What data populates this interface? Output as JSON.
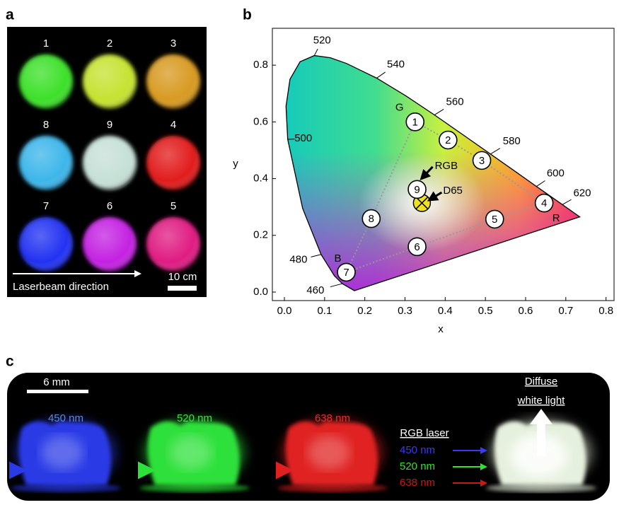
{
  "panel_a": {
    "label": "a",
    "arrow_label": "Laserbeam direction",
    "scale_label": "10 cm",
    "spheres": [
      {
        "number": "1",
        "color": "#3ce02c"
      },
      {
        "number": "2",
        "color": "#c6e232"
      },
      {
        "number": "3",
        "color": "#d89a22"
      },
      {
        "number": "8",
        "color": "#3cb6ea"
      },
      {
        "number": "9",
        "color": "#c6e0d6"
      },
      {
        "number": "4",
        "color": "#e21a1a"
      },
      {
        "number": "7",
        "color": "#2232f2"
      },
      {
        "number": "6",
        "color": "#c424e2"
      },
      {
        "number": "5",
        "color": "#e01c82"
      }
    ]
  },
  "chart_data": {
    "type": "chromaticity",
    "panel_label": "b",
    "xlabel": "x",
    "ylabel": "y",
    "xlim": [
      -0.03,
      0.82
    ],
    "ylim": [
      -0.03,
      0.93
    ],
    "xticks": [
      {
        "value": 0,
        "label": "0.0"
      },
      0.1,
      0.2,
      0.3,
      0.4,
      0.5,
      0.6,
      0.7,
      0.8
    ],
    "yticks": [
      {
        "value": 0,
        "label": "0.0"
      },
      0.2,
      0.4,
      0.6,
      0.8
    ],
    "locus": {
      "x": [
        0.1741,
        0.144,
        0.1241,
        0.0913,
        0.0454,
        0.0082,
        0.0039,
        0.0139,
        0.0389,
        0.0743,
        0.1142,
        0.1547,
        0.2296,
        0.3016,
        0.3731,
        0.4441,
        0.5125,
        0.5752,
        0.627,
        0.6915,
        0.7347
      ],
      "y": [
        0.005,
        0.0297,
        0.0578,
        0.1327,
        0.295,
        0.5384,
        0.6548,
        0.7502,
        0.812,
        0.8338,
        0.8262,
        0.8059,
        0.7543,
        0.6923,
        0.6245,
        0.5547,
        0.4866,
        0.4242,
        0.3725,
        0.3083,
        0.2653
      ]
    },
    "wavelength_labels": [
      {
        "label": "460",
        "x": 0.144,
        "y": 0.0297
      },
      {
        "label": "480",
        "x": 0.0913,
        "y": 0.1327
      },
      {
        "label": "500",
        "x": 0.0082,
        "y": 0.5384
      },
      {
        "label": "520",
        "x": 0.0743,
        "y": 0.8338
      },
      {
        "label": "540",
        "x": 0.2296,
        "y": 0.7543
      },
      {
        "label": "560",
        "x": 0.3731,
        "y": 0.6245
      },
      {
        "label": "580",
        "x": 0.5125,
        "y": 0.4866
      },
      {
        "label": "600",
        "x": 0.627,
        "y": 0.3725
      },
      {
        "label": "620",
        "x": 0.6915,
        "y": 0.3083
      }
    ],
    "points": {
      "labels": [
        "1",
        "2",
        "3",
        "4",
        "5",
        "6",
        "7",
        "8",
        "9"
      ],
      "x": [
        0.325,
        0.407,
        0.491,
        0.646,
        0.523,
        0.33,
        0.154,
        0.216,
        0.33
      ],
      "y": [
        0.6,
        0.536,
        0.464,
        0.314,
        0.257,
        0.16,
        0.07,
        0.259,
        0.362
      ]
    },
    "gamut_color": "#999999",
    "primaries": [
      "G",
      "R",
      "B"
    ],
    "rgb_label": "RGB",
    "white_point": {
      "label": "D65",
      "x": 0.342,
      "y": 0.314,
      "color": "#f2e21e"
    }
  },
  "panel_c": {
    "label": "c",
    "scale_label": "6 mm",
    "samples": [
      {
        "label": "450 nm",
        "color": "#2a3ae6",
        "text_color": "#5a8cd0"
      },
      {
        "label": "520 nm",
        "color": "#2ee03a",
        "text_color": "#3ee03e"
      },
      {
        "label": "638 nm",
        "color": "#e02020",
        "text_color": "#e03030"
      }
    ],
    "mixed_color": "#e6f0de",
    "legend_title": "RGB laser",
    "legend": [
      {
        "label": "450 nm",
        "color": "#3a3af4"
      },
      {
        "label": "520 nm",
        "color": "#32e032"
      },
      {
        "label": "638 nm",
        "color": "#c81818"
      }
    ],
    "output_lines": [
      "Diffuse",
      "white light"
    ]
  }
}
